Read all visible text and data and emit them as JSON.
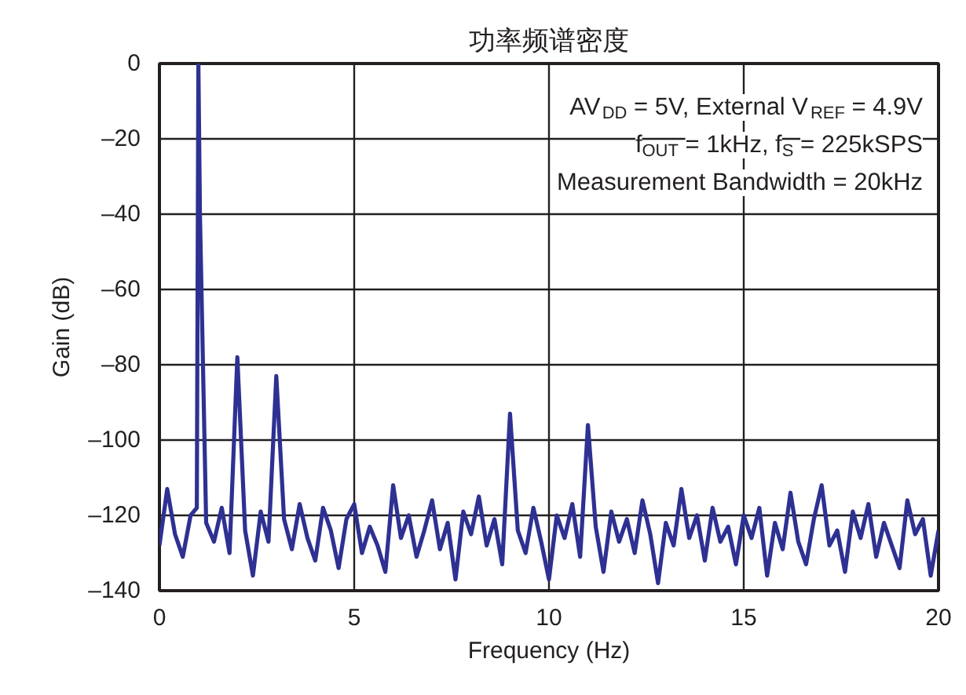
{
  "chart_data": {
    "type": "line",
    "title": "功率频谱密度",
    "xlabel": "Frequency (Hz)",
    "ylabel": "Gain (dB)",
    "annotations": [
      "AV$_{DD}$ = 5V, External V$_{REF}$ = 4.9V",
      "f$_{OUT}$ = 1kHz, f$_{S}$ = 225kSPS",
      "Measurement Bandwidth = 20kHz"
    ],
    "xlim": [
      0,
      20
    ],
    "xticks": [
      0,
      5,
      10,
      15,
      20
    ],
    "ylim": [
      -140,
      0
    ],
    "yticks": [
      0,
      {
        "value": -20,
        "label": "–20"
      },
      {
        "value": -40,
        "label": "–40"
      },
      {
        "value": -60,
        "label": "–60"
      },
      {
        "value": -80,
        "label": "–80"
      },
      {
        "value": -100,
        "label": "–100"
      },
      {
        "value": -120,
        "label": "–120"
      },
      {
        "value": -140,
        "label": "–140"
      }
    ],
    "grid": true,
    "line_style": "solid",
    "marker": "none",
    "series": [
      {
        "color": "#2e3192",
        "x": [
          0,
          0.2,
          0.4,
          0.6,
          0.8,
          0.96,
          1.0,
          1.04,
          1.2,
          1.4,
          1.6,
          1.8,
          2.0,
          2.2,
          2.4,
          2.6,
          2.8,
          3.0,
          3.2,
          3.4,
          3.6,
          3.8,
          4.0,
          4.2,
          4.4,
          4.6,
          4.8,
          5.0,
          5.2,
          5.4,
          5.6,
          5.8,
          6.0,
          6.2,
          6.4,
          6.6,
          6.8,
          7.0,
          7.2,
          7.4,
          7.6,
          7.8,
          8.0,
          8.2,
          8.4,
          8.6,
          8.8,
          9.0,
          9.2,
          9.4,
          9.6,
          9.8,
          10.0,
          10.2,
          10.4,
          10.6,
          10.8,
          11.0,
          11.2,
          11.4,
          11.6,
          11.8,
          12.0,
          12.2,
          12.4,
          12.6,
          12.8,
          13.0,
          13.2,
          13.4,
          13.6,
          13.8,
          14.0,
          14.2,
          14.4,
          14.6,
          14.8,
          15.0,
          15.2,
          15.4,
          15.6,
          15.8,
          16.0,
          16.2,
          16.4,
          16.6,
          16.8,
          17.0,
          17.2,
          17.4,
          17.6,
          17.8,
          18.0,
          18.2,
          18.4,
          18.6,
          18.8,
          19.0,
          19.2,
          19.4,
          19.6,
          19.8,
          20.0
        ],
        "values": [
          -128,
          -113,
          -125,
          -131,
          -120,
          -118,
          0,
          -40,
          -122,
          -127,
          -118,
          -130,
          -78,
          -124,
          -136,
          -119,
          -127,
          -83,
          -121,
          -129,
          -117,
          -126,
          -132,
          -118,
          -124,
          -134,
          -121,
          -117,
          -130,
          -123,
          -128,
          -135,
          -112,
          -126,
          -120,
          -131,
          -124,
          -116,
          -129,
          -122,
          -137,
          -119,
          -125,
          -115,
          -128,
          -121,
          -133,
          -93,
          -124,
          -130,
          -118,
          -127,
          -137,
          -120,
          -126,
          -117,
          -131,
          -96,
          -123,
          -135,
          -119,
          -127,
          -121,
          -130,
          -116,
          -125,
          -138,
          -122,
          -128,
          -113,
          -126,
          -120,
          -132,
          -118,
          -127,
          -123,
          -133,
          -120,
          -126,
          -118,
          -136,
          -122,
          -129,
          -114,
          -127,
          -133,
          -121,
          -112,
          -128,
          -124,
          -135,
          -119,
          -126,
          -117,
          -131,
          -122,
          -128,
          -134,
          -116,
          -125,
          -121,
          -136,
          -124
        ]
      }
    ]
  }
}
